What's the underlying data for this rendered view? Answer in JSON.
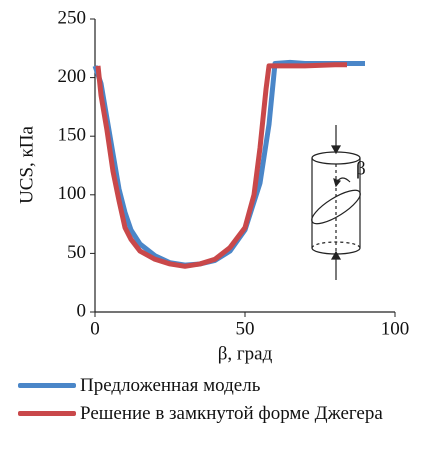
{
  "chart_data": {
    "type": "line",
    "x_label": "β, град",
    "y_label": "UCS, кПа",
    "inset_label": "β",
    "xlim": [
      0,
      100
    ],
    "xticks": [
      0,
      50,
      100
    ],
    "ylim": [
      0,
      250
    ],
    "yticks": [
      0,
      50,
      100,
      150,
      200,
      250
    ],
    "grid": false,
    "legend": "bottom",
    "series": [
      {
        "name": "Предложенная модель",
        "color": "#4a86c8",
        "x": [
          0,
          2,
          4,
          6,
          8,
          10,
          12,
          15,
          20,
          25,
          30,
          35,
          40,
          45,
          50,
          55,
          58,
          60,
          65,
          70,
          75,
          80,
          85,
          90
        ],
        "values": [
          210,
          195,
          165,
          135,
          105,
          85,
          70,
          58,
          48,
          42,
          40,
          41,
          44,
          52,
          70,
          110,
          160,
          212,
          213,
          212,
          212,
          212,
          212,
          212
        ]
      },
      {
        "name": "Решение в замкнутой форме Джегера",
        "color": "#c9484a",
        "x": [
          1,
          2,
          4,
          6,
          8,
          10,
          12,
          15,
          20,
          25,
          30,
          35,
          40,
          45,
          50,
          53,
          55,
          57,
          58,
          60,
          70,
          80,
          84
        ],
        "values": [
          210,
          185,
          155,
          120,
          95,
          72,
          62,
          52,
          45,
          41,
          39,
          41,
          45,
          55,
          72,
          100,
          140,
          190,
          210,
          210,
          210,
          211,
          211
        ]
      }
    ]
  }
}
